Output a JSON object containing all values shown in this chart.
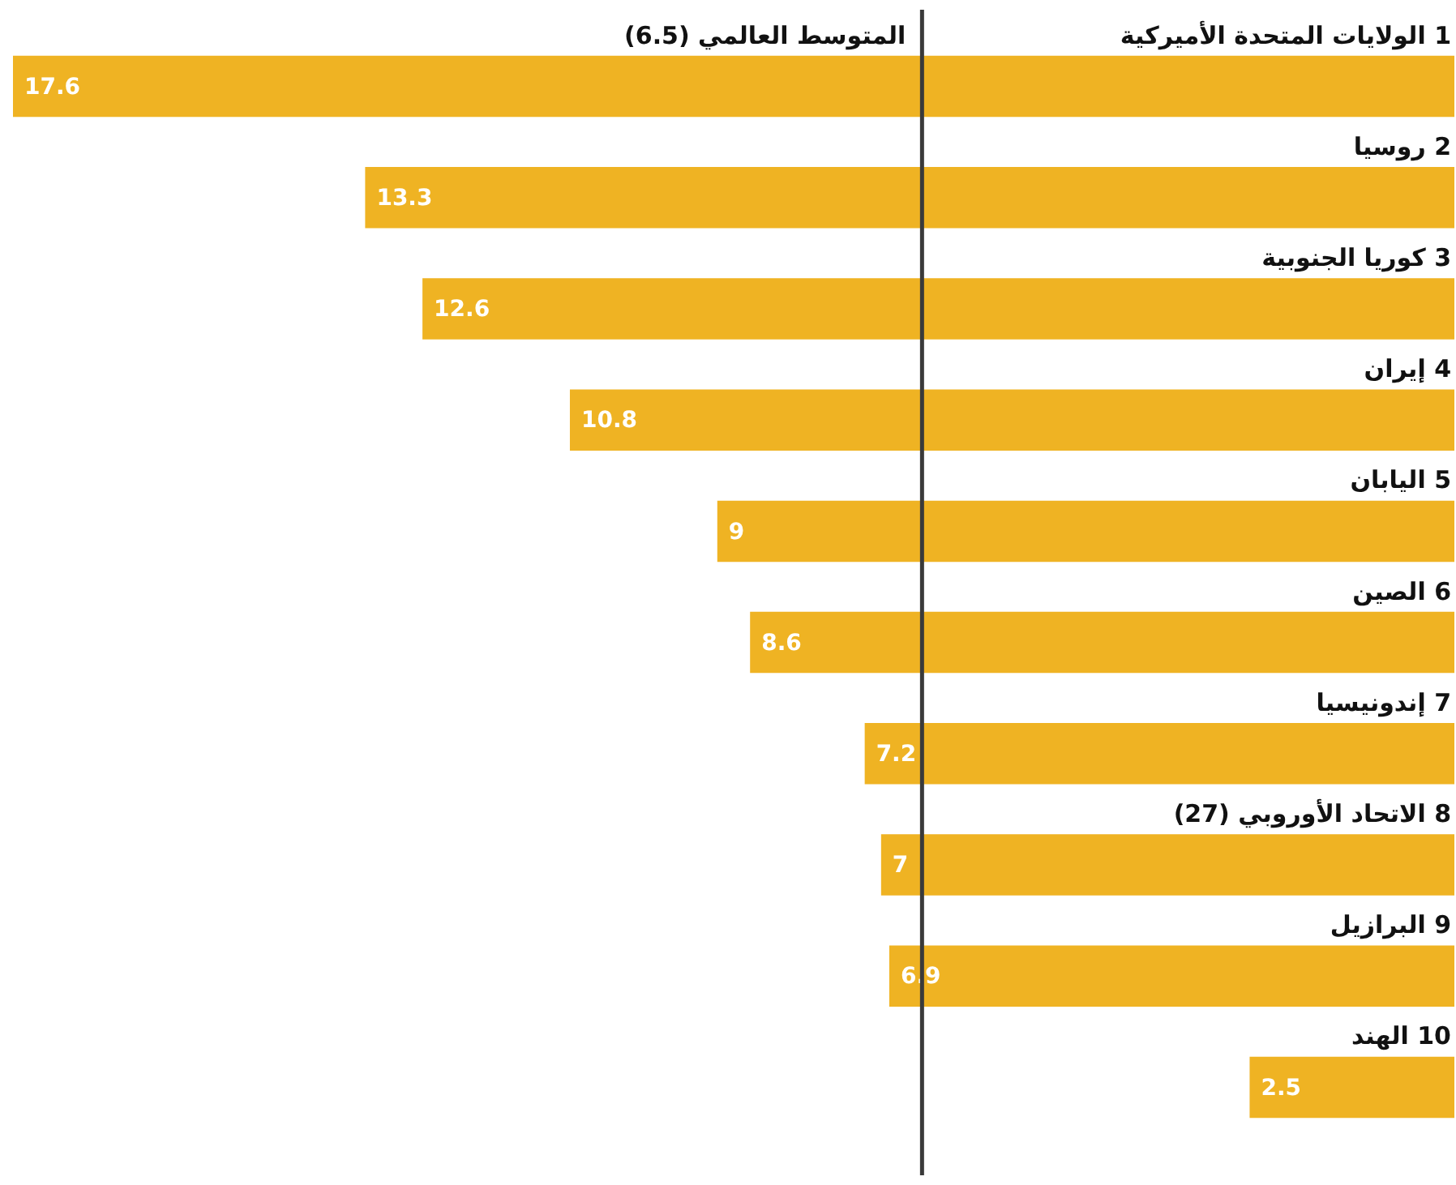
{
  "chart_data": {
    "type": "bar",
    "orientation": "horizontal",
    "categories": [
      "1 الولايات المتحدة الأميركية",
      "2 روسيا",
      "3 كوريا الجنوبية",
      "4 إيران",
      "5 اليابان",
      "6 الصين",
      "7 إندونيسيا",
      "8 الاتحاد الأوروبي (27)",
      "9 البرازيل",
      "10 الهند"
    ],
    "values": [
      17.6,
      13.3,
      12.6,
      10.8,
      9,
      8.6,
      7.2,
      7,
      6.9,
      2.5
    ],
    "color": "#efb323",
    "xlim": [
      17.6,
      0
    ],
    "grid": false,
    "legend": false,
    "data_labels": true,
    "ref_lines": [
      {
        "axis": "x",
        "value": 6.5,
        "label": "المتوسط العالمي (6.5)",
        "color": "#3a3a3a"
      }
    ]
  }
}
